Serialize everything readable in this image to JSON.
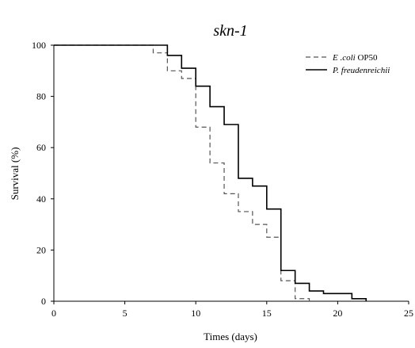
{
  "chart_data": {
    "type": "line",
    "step": true,
    "title": "skn-1",
    "xlabel": "Times (days)",
    "ylabel": "Survival (%)",
    "xlim": [
      0,
      25
    ],
    "ylim": [
      0,
      100
    ],
    "xticks": [
      0,
      5,
      10,
      15,
      20,
      25
    ],
    "yticks": [
      0,
      20,
      40,
      60,
      80,
      100
    ],
    "grid": false,
    "legend_position": "top-right",
    "series": [
      {
        "name_italic": "E .coli",
        "name_rest": "OP50",
        "line_style": "dashed",
        "color": "#555555",
        "x": [
          0,
          7,
          8,
          9,
          10,
          11,
          12,
          13,
          14,
          15,
          16,
          17,
          18
        ],
        "y": [
          100,
          97,
          90,
          87,
          68,
          54,
          42,
          35,
          30,
          25,
          8,
          1,
          0
        ]
      },
      {
        "name_italic": "P. freudenreichii",
        "name_rest": "",
        "line_style": "solid",
        "color": "#000000",
        "x": [
          0,
          8,
          9,
          10,
          11,
          12,
          13,
          14,
          15,
          16,
          17,
          18,
          19,
          21,
          22
        ],
        "y": [
          100,
          96,
          91,
          84,
          76,
          69,
          48,
          45,
          36,
          12,
          7,
          4,
          3,
          1,
          0
        ]
      }
    ]
  }
}
